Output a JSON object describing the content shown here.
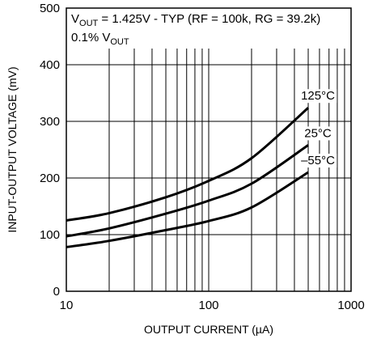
{
  "chart_data": {
    "type": "line",
    "x_scale": "log",
    "xlim": [
      10,
      1000
    ],
    "ylim": [
      0,
      500
    ],
    "grid": true,
    "xlabel": "OUTPUT CURRENT (µA)",
    "ylabel": "INPUT-OUTPUT VOLTAGE (mV)",
    "x_tick_labels": [
      "10",
      "100",
      "1000"
    ],
    "y_tick_labels": [
      "0",
      "100",
      "200",
      "300",
      "400",
      "500"
    ],
    "annotation_line1_prefix": "V",
    "annotation_line1_sub": "OUT",
    "annotation_line1_rest": " = 1.425V - TYP (RF = 100k, RG = 39.2k)",
    "annotation_line2_prefix": "0.1% V",
    "annotation_line2_sub": "OUT",
    "series": [
      {
        "name": "125°C",
        "x": [
          10,
          20,
          50,
          100,
          200,
          500
        ],
        "y": [
          125,
          138,
          166,
          195,
          235,
          324
        ]
      },
      {
        "name": "25°C",
        "x": [
          10,
          20,
          50,
          100,
          200,
          500
        ],
        "y": [
          97,
          111,
          137,
          160,
          190,
          258
        ]
      },
      {
        "name": "–55°C",
        "x": [
          10,
          20,
          50,
          100,
          200,
          500
        ],
        "y": [
          78,
          89,
          108,
          124,
          148,
          210
        ]
      }
    ]
  }
}
